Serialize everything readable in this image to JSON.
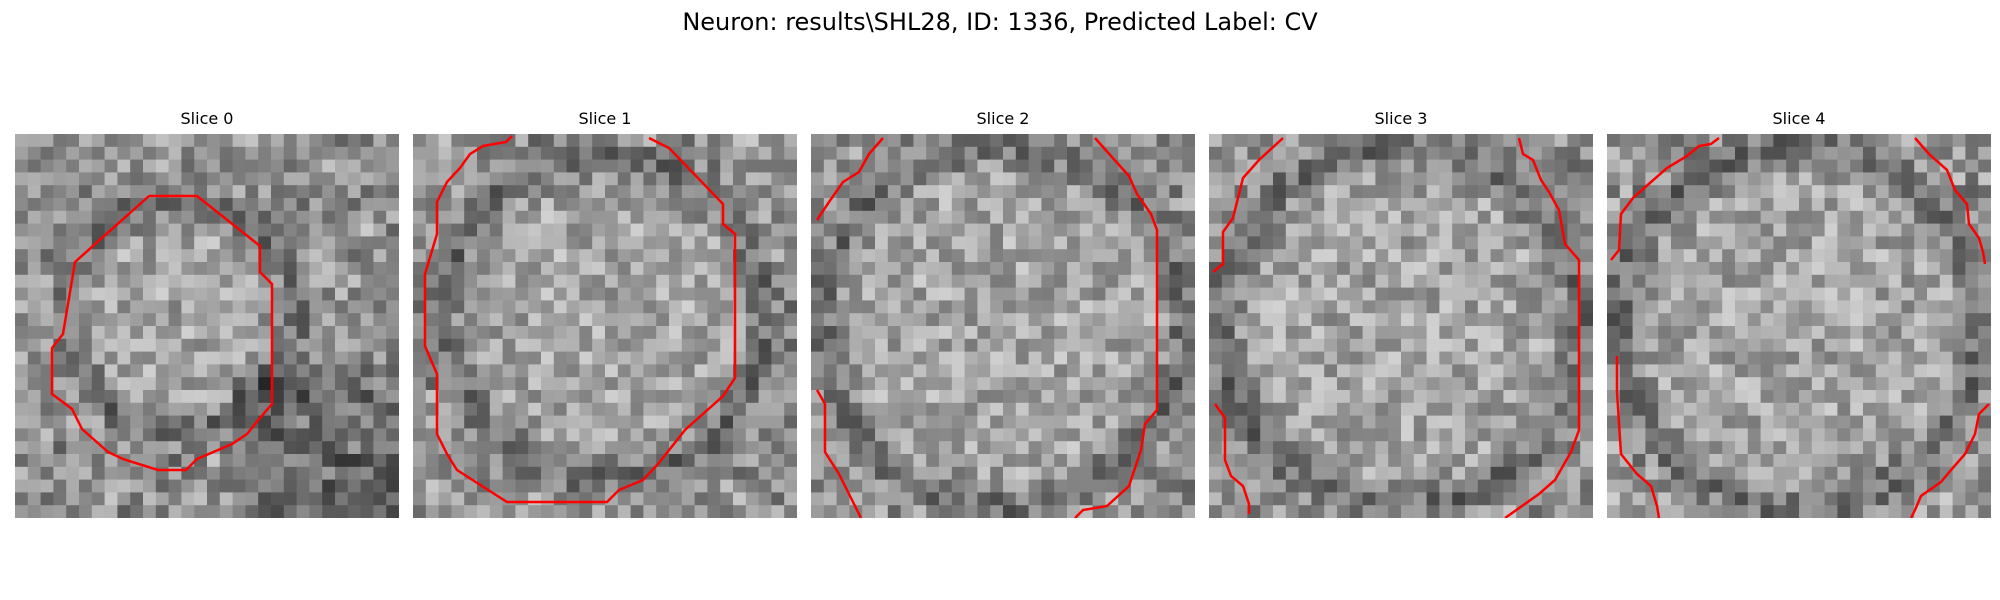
{
  "figure": {
    "title": "Neuron: results\\SHL28, ID: 1336, Predicted Label: CV"
  },
  "panels": [
    {
      "title": "Slice 0"
    },
    {
      "title": "Slice 1"
    },
    {
      "title": "Slice 2"
    },
    {
      "title": "Slice 3"
    },
    {
      "title": "Slice 4"
    }
  ],
  "colors": {
    "contour": "#ff0000",
    "background": "#ffffff"
  }
}
